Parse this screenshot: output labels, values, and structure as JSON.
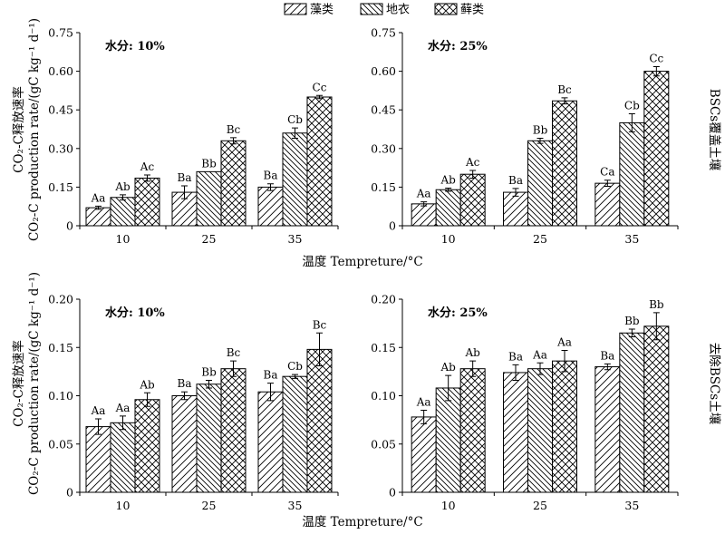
{
  "legend": {
    "items": [
      {
        "label": "藻类",
        "pattern": "algae"
      },
      {
        "label": "地衣",
        "pattern": "lichen"
      },
      {
        "label": "藓类",
        "pattern": "moss"
      }
    ],
    "placement": "top-center"
  },
  "row_labels": [
    "BSCs覆盖土壤",
    "去除BSCs土壤"
  ],
  "x_axis_label": "温度 Tempreture/°C",
  "y_axis_label_line1": "CO₂-C释放速率",
  "y_axis_label_line2": "CO₂-C production rate/(gC kg⁻¹ d⁻¹)",
  "chart_data": [
    {
      "type": "bar",
      "title": "水分: 10%",
      "categories": [
        "10",
        "25",
        "35"
      ],
      "ylim": [
        0,
        0.75
      ],
      "yticks": [
        "0",
        "0.15",
        "0.30",
        "0.45",
        "0.60",
        "0.75"
      ],
      "series": [
        {
          "name": "藻类",
          "values": [
            0.07,
            0.13,
            0.15
          ],
          "errors": [
            0.006,
            0.025,
            0.013
          ],
          "labels": [
            "Aa",
            "Ba",
            "Ba"
          ]
        },
        {
          "name": "地衣",
          "values": [
            0.11,
            0.21,
            0.36
          ],
          "errors": [
            0.01,
            0,
            0.02
          ],
          "labels": [
            "Ab",
            "Bb",
            "Cb"
          ]
        },
        {
          "name": "藓类",
          "values": [
            0.185,
            0.33,
            0.5
          ],
          "errors": [
            0.012,
            0.012,
            0.006
          ],
          "labels": [
            "Ac",
            "Bc",
            "Cc"
          ]
        }
      ]
    },
    {
      "type": "bar",
      "title": "水分: 25%",
      "categories": [
        "10",
        "25",
        "35"
      ],
      "ylim": [
        0,
        0.75
      ],
      "yticks": [
        "0",
        "0.15",
        "0.30",
        "0.45",
        "0.60",
        "0.75"
      ],
      "series": [
        {
          "name": "藻类",
          "values": [
            0.085,
            0.13,
            0.165
          ],
          "errors": [
            0.008,
            0.015,
            0.012
          ],
          "labels": [
            "Aa",
            "Ba",
            "Ca"
          ]
        },
        {
          "name": "地衣",
          "values": [
            0.14,
            0.33,
            0.4
          ],
          "errors": [
            0.006,
            0.01,
            0.035
          ],
          "labels": [
            "Ab",
            "Bb",
            "Cb"
          ]
        },
        {
          "name": "藓类",
          "values": [
            0.2,
            0.485,
            0.6
          ],
          "errors": [
            0.015,
            0.012,
            0.018
          ],
          "labels": [
            "Ac",
            "Bc",
            "Cc"
          ]
        }
      ]
    },
    {
      "type": "bar",
      "title": "水分: 10%",
      "categories": [
        "10",
        "25",
        "35"
      ],
      "ylim": [
        0,
        0.2
      ],
      "yticks": [
        "0",
        "0.05",
        "0.10",
        "0.15",
        "0.20"
      ],
      "series": [
        {
          "name": "藻类",
          "values": [
            0.068,
            0.1,
            0.104
          ],
          "errors": [
            0.008,
            0.004,
            0.009
          ],
          "labels": [
            "Aa",
            "Ba",
            "Ba"
          ]
        },
        {
          "name": "地衣",
          "values": [
            0.072,
            0.112,
            0.12
          ],
          "errors": [
            0.007,
            0.004,
            0.002
          ],
          "labels": [
            "Aa",
            "Bb",
            "Cb"
          ]
        },
        {
          "name": "藓类",
          "values": [
            0.096,
            0.128,
            0.148
          ],
          "errors": [
            0.007,
            0.008,
            0.017
          ],
          "labels": [
            "Ab",
            "Bc",
            "Bc"
          ]
        }
      ]
    },
    {
      "type": "bar",
      "title": "水分: 25%",
      "categories": [
        "10",
        "25",
        "35"
      ],
      "ylim": [
        0,
        0.2
      ],
      "yticks": [
        "0",
        "0.05",
        "0.10",
        "0.15",
        "0.20"
      ],
      "series": [
        {
          "name": "藻类",
          "values": [
            0.078,
            0.124,
            0.13
          ],
          "errors": [
            0.007,
            0.008,
            0.003
          ],
          "labels": [
            "Aa",
            "Ba",
            "Ba"
          ]
        },
        {
          "name": "地衣",
          "values": [
            0.108,
            0.128,
            0.165
          ],
          "errors": [
            0.013,
            0.006,
            0.004
          ],
          "labels": [
            "Ab",
            "Aa",
            "Bb"
          ]
        },
        {
          "name": "藓类",
          "values": [
            0.128,
            0.136,
            0.172
          ],
          "errors": [
            0.008,
            0.011,
            0.014
          ],
          "labels": [
            "Ab",
            "Aa",
            "Bb"
          ]
        }
      ]
    }
  ]
}
